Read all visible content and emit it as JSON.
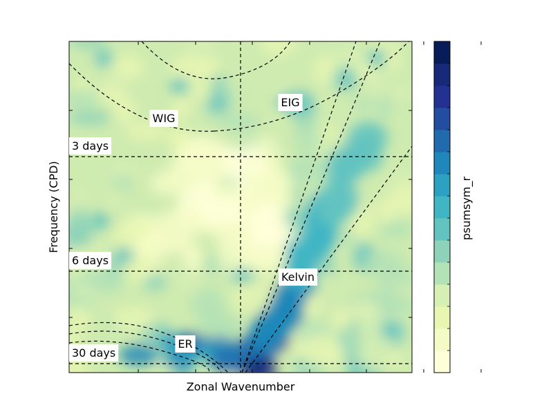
{
  "chart_data": {
    "type": "heatmap",
    "xlabel": "Zonal Wavenumber",
    "ylabel": "Frequency (CPD)",
    "colorbar_label": "psumsym_r",
    "colormap": "YlGnBu",
    "colors": [
      "#ffffd9",
      "#f4fbc4",
      "#e8f6b1",
      "#d6efb3",
      "#b3e2b6",
      "#8ed2ba",
      "#63c3bf",
      "#40b5c4",
      "#2ca1c2",
      "#1f87b9",
      "#216aad",
      "#234da0",
      "#233192",
      "#172978",
      "#081d58"
    ],
    "x_ticks_count": 7,
    "y_ticks_count": 5,
    "period_lines": [
      {
        "label": "3 days"
      },
      {
        "label": "6 days"
      },
      {
        "label": "30 days"
      }
    ],
    "dispersion_labels": [
      {
        "label": "WIG"
      },
      {
        "label": "EIG"
      },
      {
        "label": "Kelvin"
      },
      {
        "label": "ER"
      }
    ],
    "zero_wavenumber_line": true,
    "grid": false
  }
}
